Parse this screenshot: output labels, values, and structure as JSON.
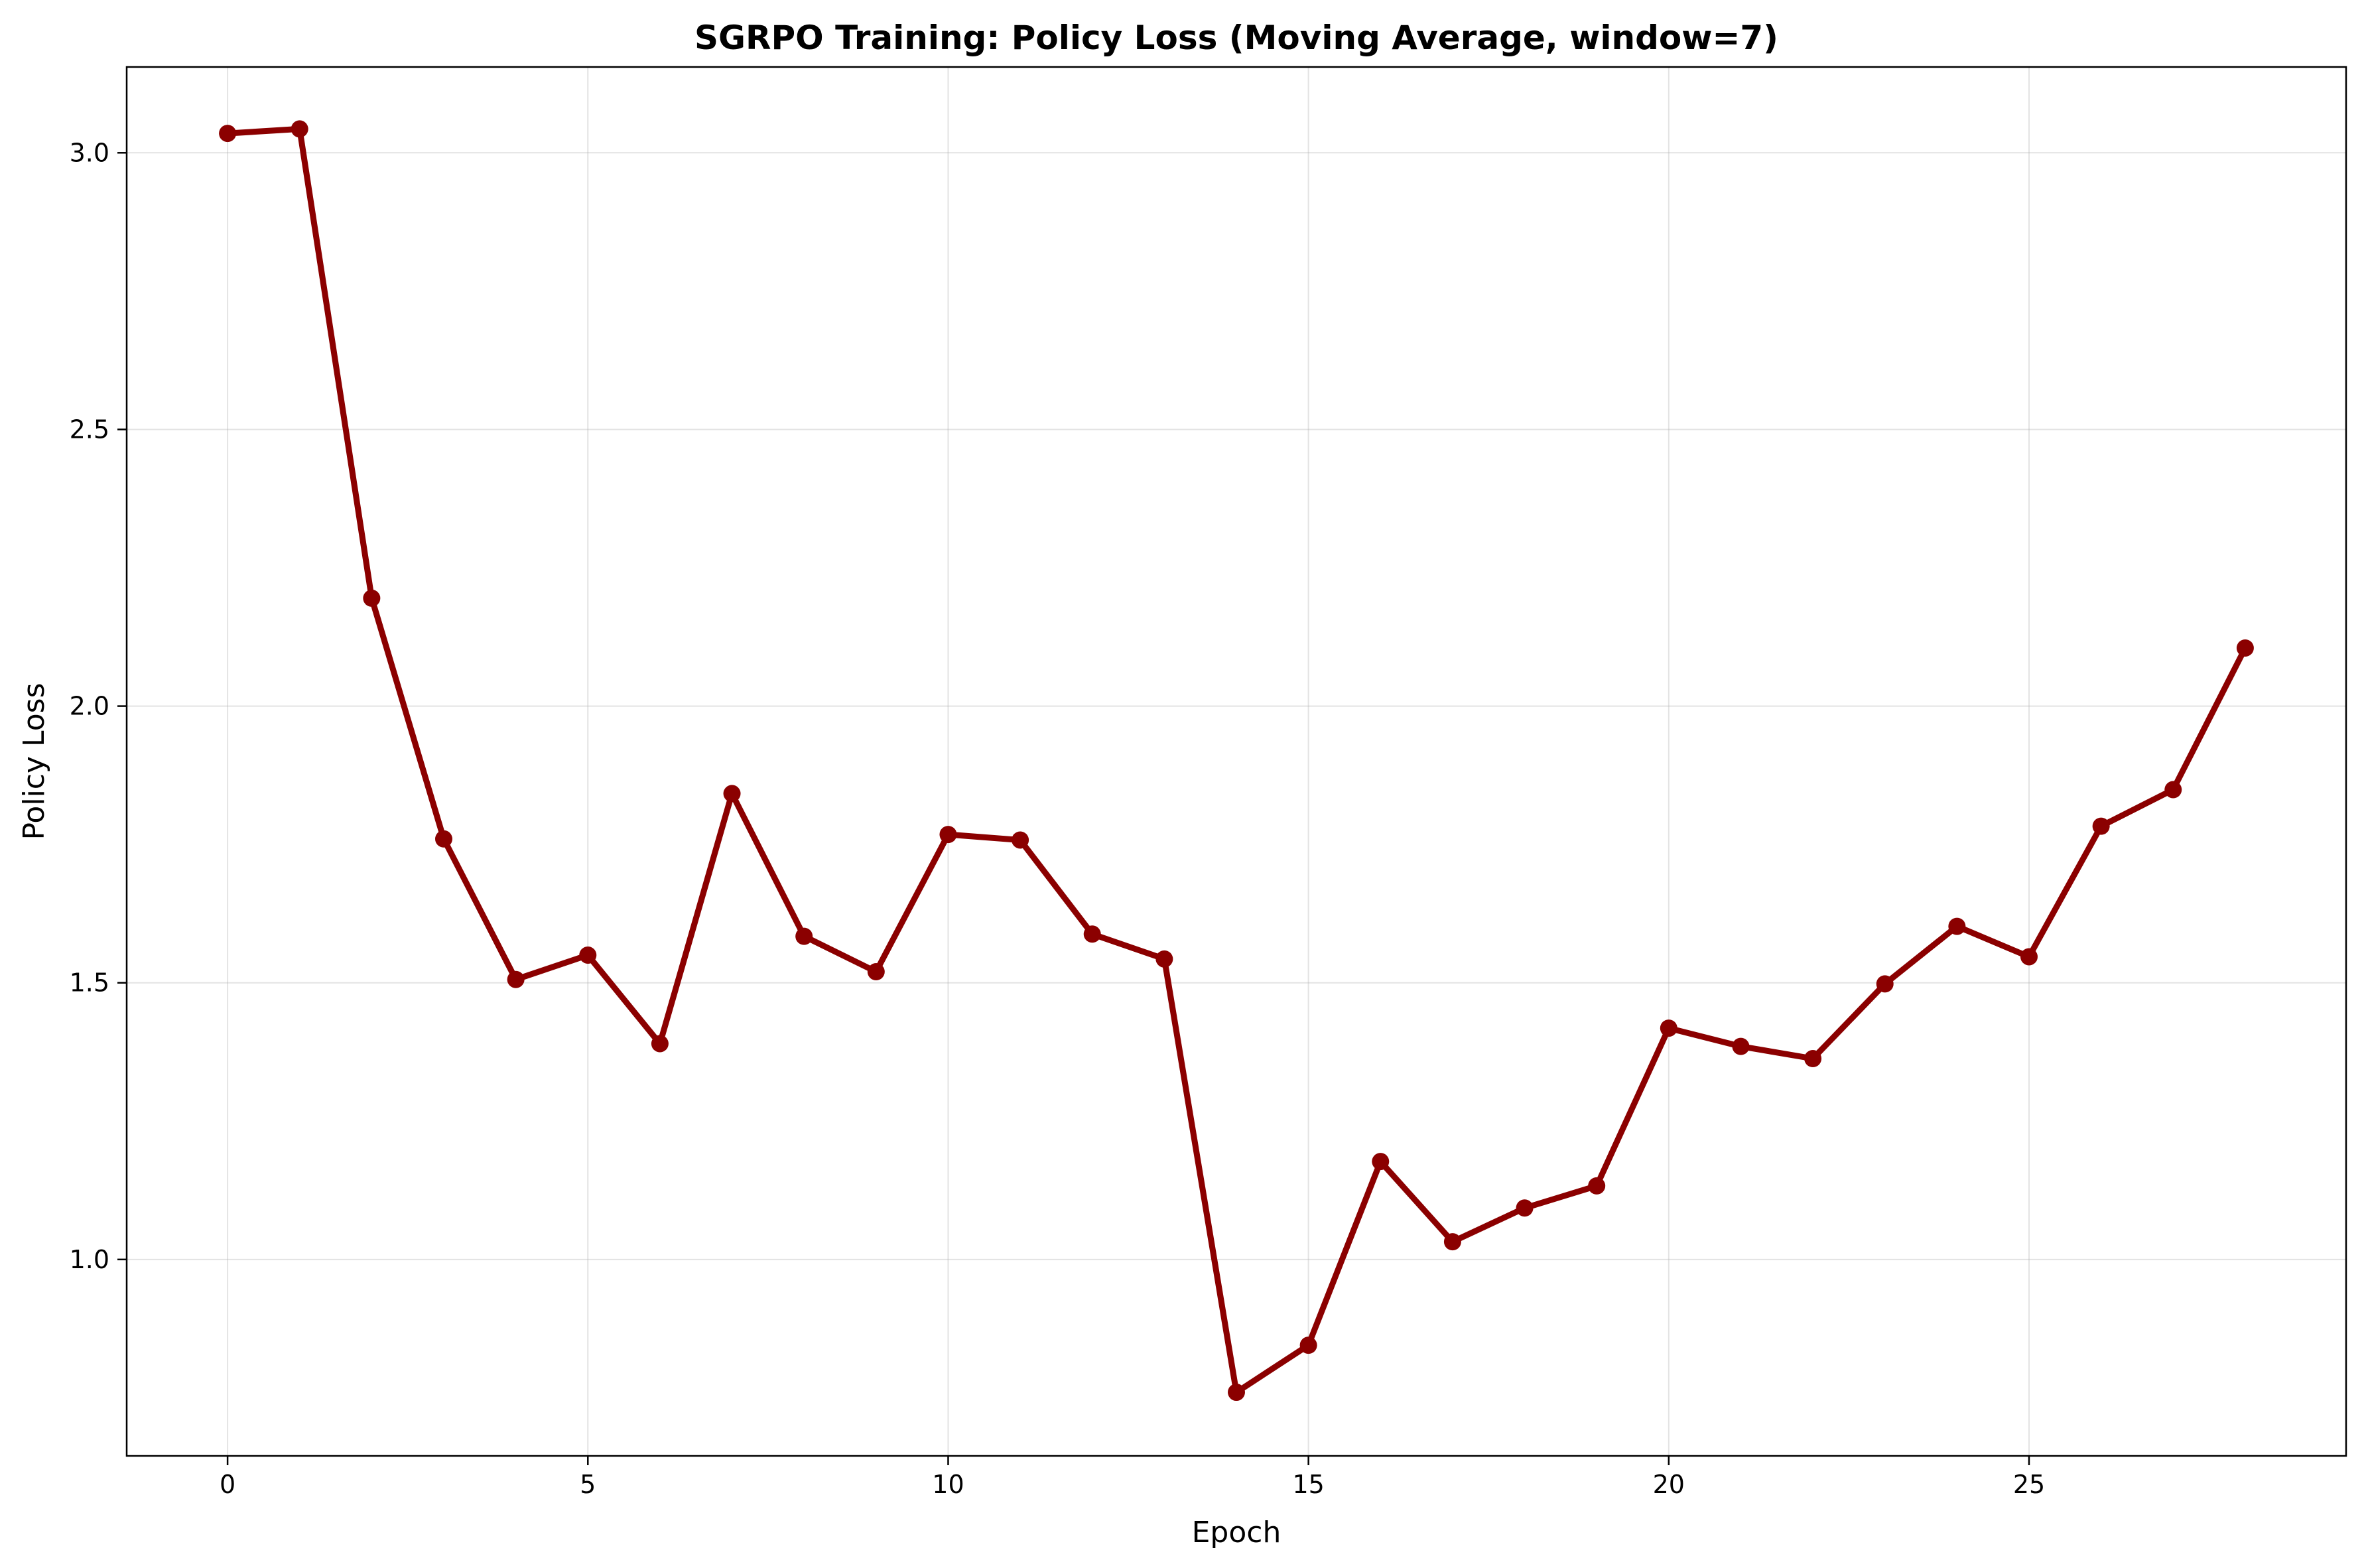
{
  "chart_data": {
    "type": "line",
    "title": "SGRPO Training: Policy Loss (Moving Average, window=7)",
    "xlabel": "Epoch",
    "ylabel": "Policy Loss",
    "xlim": [
      -1.4,
      29.4
    ],
    "ylim": [
      0.645,
      3.155
    ],
    "xticks": [
      0,
      5,
      10,
      15,
      20,
      25
    ],
    "xtick_labels": [
      "0",
      "5",
      "10",
      "15",
      "20",
      "25"
    ],
    "yticks": [
      1.0,
      1.5,
      2.0,
      2.5,
      3.0
    ],
    "ytick_labels": [
      "1.0",
      "1.5",
      "2.0",
      "2.5",
      "3.0"
    ],
    "grid": true,
    "line_color": "#8b0000",
    "series": [
      {
        "x": [
          0,
          1,
          2,
          3,
          4,
          5,
          6,
          7,
          8,
          9,
          10,
          11,
          12,
          13,
          14,
          15,
          16,
          17,
          18,
          19,
          20,
          21,
          22,
          23,
          24,
          25,
          26,
          27,
          28
        ],
        "values": [
          3.035,
          3.043,
          2.195,
          1.76,
          1.506,
          1.55,
          1.39,
          1.842,
          1.584,
          1.52,
          1.768,
          1.758,
          1.588,
          1.543,
          0.76,
          0.845,
          1.177,
          1.032,
          1.093,
          1.133,
          1.418,
          1.385,
          1.363,
          1.498,
          1.602,
          1.547,
          1.783,
          1.849,
          2.105
        ]
      }
    ]
  }
}
